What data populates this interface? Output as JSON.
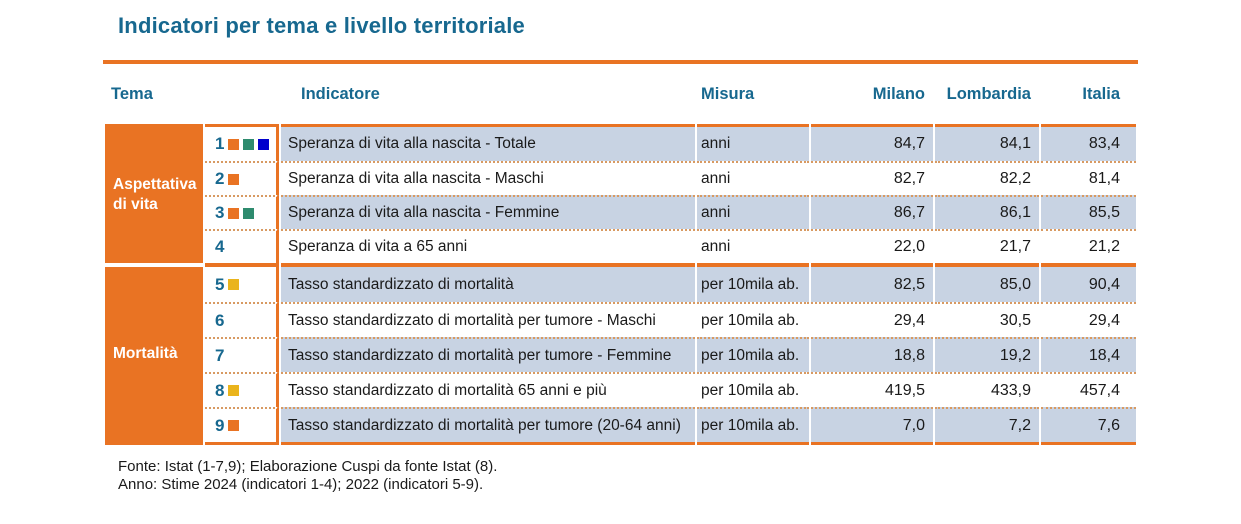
{
  "title": "Indicatori per tema e livello territoriale",
  "columns": {
    "tema": "Tema",
    "indicatore": "Indicatore",
    "misura": "Misura",
    "milano": "Milano",
    "lombardia": "Lombardia",
    "italia": "Italia"
  },
  "colors": {
    "accent_orange": "#E97323",
    "header_teal": "#17688F",
    "row_highlight_blue": "#C8D3E3",
    "marker_orange": "#E97323",
    "marker_green": "#2E8B6E",
    "marker_blue": "#0000CD",
    "marker_yellow": "#EAB41C"
  },
  "groups": [
    {
      "tema": "Aspettativa di vita",
      "rows": [
        {
          "num": "1",
          "markers": [
            "orange",
            "green",
            "blue"
          ],
          "indicatore": "Speranza di vita alla nascita - Totale",
          "misura": "anni",
          "milano": "84,7",
          "lombardia": "84,1",
          "italia": "83,4"
        },
        {
          "num": "2",
          "markers": [
            "orange"
          ],
          "indicatore": "Speranza di vita alla nascita - Maschi",
          "misura": "anni",
          "milano": "82,7",
          "lombardia": "82,2",
          "italia": "81,4"
        },
        {
          "num": "3",
          "markers": [
            "orange",
            "green"
          ],
          "indicatore": "Speranza di vita alla nascita - Femmine",
          "misura": "anni",
          "milano": "86,7",
          "lombardia": "86,1",
          "italia": "85,5"
        },
        {
          "num": "4",
          "markers": [],
          "indicatore": "Speranza di vita a 65 anni",
          "misura": "anni",
          "milano": "22,0",
          "lombardia": "21,7",
          "italia": "21,2"
        }
      ]
    },
    {
      "tema": "Mortalità",
      "rows": [
        {
          "num": "5",
          "markers": [
            "yellow"
          ],
          "indicatore": "Tasso standardizzato di mortalità",
          "misura": "per 10mila ab.",
          "milano": "82,5",
          "lombardia": "85,0",
          "italia": "90,4"
        },
        {
          "num": "6",
          "markers": [],
          "indicatore": "Tasso standardizzato di mortalità per tumore - Maschi",
          "misura": "per 10mila ab.",
          "milano": "29,4",
          "lombardia": "30,5",
          "italia": "29,4"
        },
        {
          "num": "7",
          "markers": [],
          "indicatore": "Tasso standardizzato di mortalità per tumore - Femmine",
          "misura": "per 10mila ab.",
          "milano": "18,8",
          "lombardia": "19,2",
          "italia": "18,4"
        },
        {
          "num": "8",
          "markers": [
            "yellow"
          ],
          "indicatore": "Tasso standardizzato di mortalità 65 anni e più",
          "misura": "per 10mila ab.",
          "milano": "419,5",
          "lombardia": "433,9",
          "italia": "457,4"
        },
        {
          "num": "9",
          "markers": [
            "orange"
          ],
          "indicatore": "Tasso standardizzato di mortalità per tumore (20-64 anni)",
          "misura": "per 10mila ab.",
          "milano": "7,0",
          "lombardia": "7,2",
          "italia": "7,6"
        }
      ]
    }
  ],
  "footer": {
    "line1": "Fonte: Istat (1-7,9); Elaborazione Cuspi da fonte Istat (8).",
    "line2": "Anno: Stime 2024 (indicatori 1-4); 2022 (indicatori 5-9)."
  }
}
